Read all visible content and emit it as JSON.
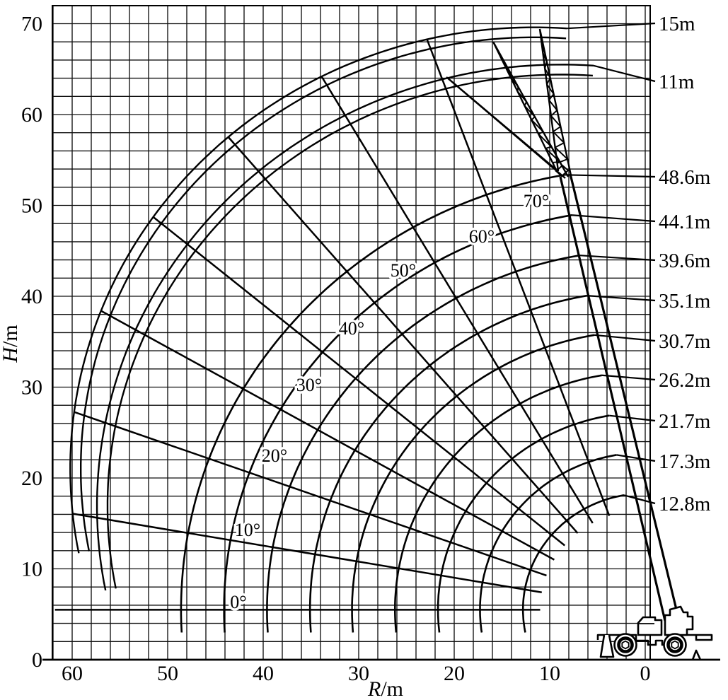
{
  "page": {
    "background": "#ffffff",
    "ink": "#000000"
  },
  "chart_data": {
    "type": "line",
    "xlabel": "R/m",
    "ylabel": "H/m",
    "x_axis": {
      "ticks": [
        60,
        50,
        40,
        30,
        20,
        10,
        0
      ],
      "range": [
        62.1,
        -0.5
      ],
      "direction": "reversed",
      "unit": "m"
    },
    "y_axis": {
      "ticks": [
        0,
        10,
        20,
        30,
        40,
        50,
        60,
        70
      ],
      "range": [
        0,
        72
      ],
      "unit": "m"
    },
    "grid": {
      "on": true,
      "step_m": 2
    },
    "pivot": {
      "R_m": 0,
      "H_m": 5.5
    },
    "max_boom_angle_deg": 80,
    "series": [
      {
        "label": "12.8m",
        "radius_m": 12.8
      },
      {
        "label": "17.3m",
        "radius_m": 17.3
      },
      {
        "label": "21.7m",
        "radius_m": 21.7
      },
      {
        "label": "26.2m",
        "radius_m": 26.2
      },
      {
        "label": "30.7m",
        "radius_m": 30.7
      },
      {
        "label": "35.1m",
        "radius_m": 35.1
      },
      {
        "label": "39.6m",
        "radius_m": 39.6
      },
      {
        "label": "44.1m",
        "radius_m": 44.1
      },
      {
        "label": "48.6m",
        "radius_m": 48.6
      }
    ],
    "jib_curves": [
      {
        "label": "11m",
        "length_m": 11,
        "center_R_m": 8.8,
        "center_H_m": 16.9,
        "arc_radius_m": 48.6
      },
      {
        "label": "15m",
        "length_m": 15,
        "center_R_m": 11.6,
        "center_H_m": 21.0,
        "arc_radius_m": 48.6
      }
    ],
    "angle_lines": [
      {
        "label": "0°",
        "deg": 0
      },
      {
        "label": "10°",
        "deg": 10
      },
      {
        "label": "20°",
        "deg": 20
      },
      {
        "label": "30°",
        "deg": 30
      },
      {
        "label": "40°",
        "deg": 40
      },
      {
        "label": "50°",
        "deg": 50
      },
      {
        "label": "60°",
        "deg": 60
      },
      {
        "label": "70°",
        "deg": 70
      }
    ]
  }
}
